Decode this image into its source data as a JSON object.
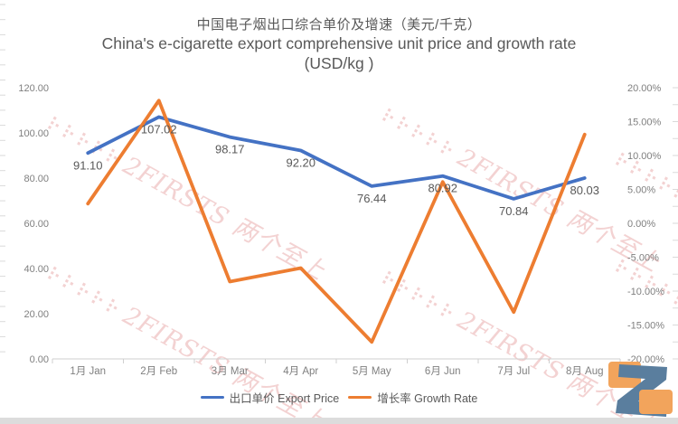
{
  "title": {
    "zh": "中国电子烟出口综合单价及增速（美元/千克）",
    "en_line1": "China's e-cigarette export comprehensive unit price and growth rate",
    "en_line2": "(USD/kg )"
  },
  "chart_data": {
    "type": "line",
    "title_zh": "中国电子烟出口综合单价及增速（美元/千克）",
    "title_en": "China's e-cigarette export comprehensive unit price and growth rate (USD/kg )",
    "categories": [
      "1月 Jan",
      "2月 Feb",
      "3月 Mar",
      "4月 Apr",
      "5月 May",
      "6月 Jun",
      "7月 Jul",
      "8月 Aug"
    ],
    "series": [
      {
        "name": "出口单价 Export Price",
        "axis": "left",
        "color": "#4472C4",
        "values": [
          91.1,
          107.02,
          98.17,
          92.2,
          76.44,
          80.92,
          70.84,
          80.03
        ],
        "data_labels": [
          "91.10",
          "107.02",
          "98.17",
          "92.20",
          "76.44",
          "80.92",
          "70.84",
          "80.03"
        ]
      },
      {
        "name": "增长率 Growth Rate",
        "axis": "right",
        "color": "#ED7D31",
        "values": [
          2.9,
          18.1,
          -8.6,
          -6.6,
          -17.5,
          6.1,
          -13.1,
          13.1
        ],
        "data_labels": null
      }
    ],
    "left_axis": {
      "min": 0,
      "max": 120,
      "tick_labels": [
        "120.00",
        "100.00",
        "80.00",
        "60.00",
        "40.00",
        "20.00",
        "0.00"
      ]
    },
    "right_axis": {
      "min": -20,
      "max": 20,
      "tick_labels": [
        "20.00%",
        "15.00%",
        "10.00%",
        "5.00%",
        "0.00%",
        "-5.00%",
        "-10.00%",
        "-15.00%",
        "-20.00%"
      ]
    },
    "grid": false,
    "legend_position": "bottom"
  },
  "legend": {
    "items": [
      {
        "label": "出口单价 Export Price",
        "color": "#4472C4"
      },
      {
        "label": "增长率 Growth Rate",
        "color": "#ED7D31"
      }
    ]
  },
  "watermark": {
    "logo_dots": "⠗⠗⠗⠗⠗",
    "text": "2FIRSTS 两个至上"
  },
  "colors": {
    "title_text": "#595959",
    "axis_text": "#7f7f7f",
    "axis_line": "#cfcfcf",
    "export_price_line": "#4472C4",
    "growth_rate_line": "#ED7D31",
    "logo_blue": "#5A7E9E",
    "logo_orange": "#F2A45C",
    "footer_bar": "#dcdcdc"
  }
}
